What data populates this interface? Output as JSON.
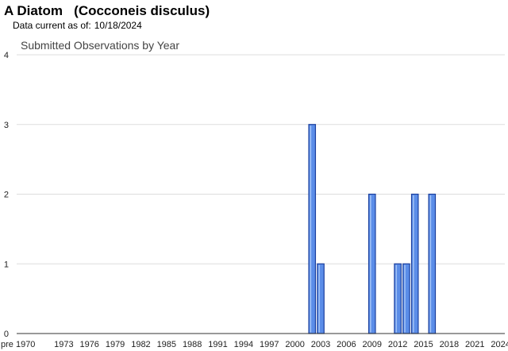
{
  "header": {
    "title": "A Diatom   (Cocconeis disculus)",
    "data_current_label": "Data current as of:",
    "data_current_date": "10/18/2024"
  },
  "chart_data": {
    "type": "bar",
    "title": "Submitted Observations by Year",
    "x_tick_labels": [
      "pre 1970",
      "1973",
      "1976",
      "1979",
      "1982",
      "1985",
      "1988",
      "1991",
      "1994",
      "1997",
      "2000",
      "2003",
      "2006",
      "2009",
      "2012",
      "2015",
      "2018",
      "2021",
      "2024"
    ],
    "categories": [
      "2002",
      "2003",
      "2009",
      "2012",
      "2013",
      "2014",
      "2016"
    ],
    "values": [
      3,
      1,
      2,
      1,
      1,
      2,
      2
    ],
    "x_range": [
      1968,
      2025
    ],
    "ylim": [
      0,
      4
    ],
    "y_ticks": [
      0,
      1,
      2,
      3,
      4
    ],
    "grid": true,
    "bar_color": "#5b8de8",
    "bar_border_color": "#1a3f9e"
  }
}
